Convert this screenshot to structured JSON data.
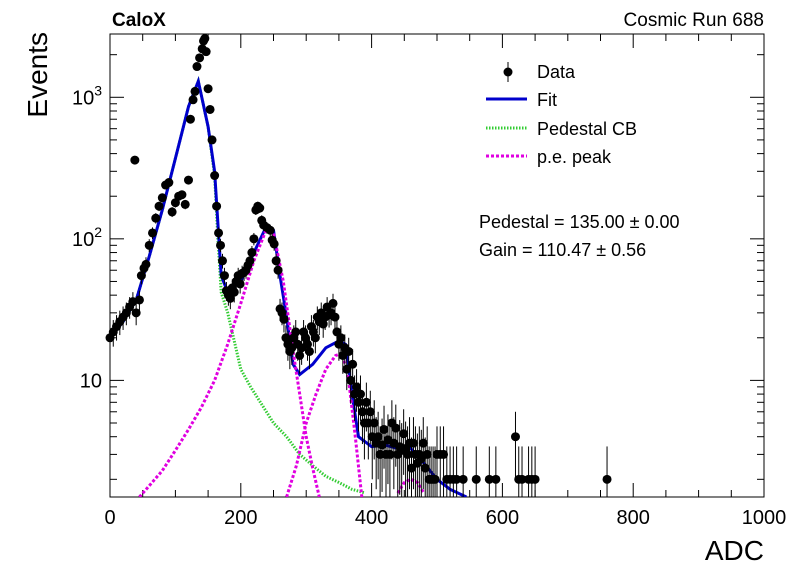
{
  "header": {
    "experiment": "CaloX",
    "run": "Cosmic Run 688"
  },
  "chart_data": {
    "type": "scatter",
    "xlabel": "ADC",
    "ylabel": "Events",
    "xlim": [
      0,
      1000
    ],
    "ylim": [
      1.5,
      2800
    ],
    "yscale": "log",
    "x_ticks": [
      0,
      200,
      400,
      600,
      800,
      1000
    ],
    "y_ticks": [
      10,
      100,
      1000
    ],
    "y_tick_labels": [
      "10",
      "10^2",
      "10^3"
    ],
    "legend": {
      "placement": "top-right",
      "entries": [
        "Data",
        "Fit",
        "Pedestal CB",
        "p.e. peak"
      ]
    },
    "annotations": {
      "pedestal": "Pedestal = 135.00 ± 0.00",
      "gain": "Gain = 110.47 ± 0.56"
    },
    "colors": {
      "data": "#000000",
      "fit": "#0000cc",
      "pedestal": "#33cc33",
      "pe": "#e000e0"
    },
    "data": [
      [
        0,
        20
      ],
      [
        5,
        22
      ],
      [
        10,
        24
      ],
      [
        15,
        26
      ],
      [
        20,
        28
      ],
      [
        25,
        30
      ],
      [
        30,
        33
      ],
      [
        35,
        36
      ],
      [
        38,
        360
      ],
      [
        40,
        30
      ],
      [
        45,
        37
      ],
      [
        48,
        55
      ],
      [
        52,
        62
      ],
      [
        55,
        66
      ],
      [
        60,
        90
      ],
      [
        65,
        110
      ],
      [
        70,
        140
      ],
      [
        75,
        170
      ],
      [
        80,
        195
      ],
      [
        85,
        240
      ],
      [
        90,
        250
      ],
      [
        95,
        155
      ],
      [
        100,
        180
      ],
      [
        105,
        200
      ],
      [
        110,
        205
      ],
      [
        115,
        175
      ],
      [
        120,
        260
      ],
      [
        123,
        700
      ],
      [
        127,
        960
      ],
      [
        130,
        1100
      ],
      [
        133,
        1650
      ],
      [
        137,
        1900
      ],
      [
        141,
        2200
      ],
      [
        143,
        2500
      ],
      [
        145,
        2600
      ],
      [
        147,
        2100
      ],
      [
        150,
        1150
      ],
      [
        153,
        820
      ],
      [
        156,
        500
      ],
      [
        160,
        280
      ],
      [
        163,
        170
      ],
      [
        166,
        110
      ],
      [
        169,
        90
      ],
      [
        172,
        70
      ],
      [
        175,
        55
      ],
      [
        178,
        43
      ],
      [
        181,
        40
      ],
      [
        184,
        38
      ],
      [
        187,
        45
      ],
      [
        190,
        42
      ],
      [
        193,
        50
      ],
      [
        196,
        55
      ],
      [
        199,
        48
      ],
      [
        202,
        57
      ],
      [
        205,
        58
      ],
      [
        208,
        60
      ],
      [
        211,
        65
      ],
      [
        214,
        70
      ],
      [
        217,
        80
      ],
      [
        220,
        100
      ],
      [
        223,
        160
      ],
      [
        226,
        170
      ],
      [
        229,
        165
      ],
      [
        232,
        135
      ],
      [
        235,
        125
      ],
      [
        240,
        120
      ],
      [
        245,
        115
      ],
      [
        248,
        98
      ],
      [
        251,
        92
      ],
      [
        254,
        70
      ],
      [
        257,
        60
      ],
      [
        260,
        32
      ],
      [
        263,
        30
      ],
      [
        266,
        27
      ],
      [
        269,
        20
      ],
      [
        272,
        18
      ],
      [
        275,
        16
      ],
      [
        278,
        17
      ],
      [
        281,
        20
      ],
      [
        284,
        22
      ],
      [
        287,
        18
      ],
      [
        290,
        15
      ],
      [
        293,
        17
      ],
      [
        296,
        22
      ],
      [
        299,
        20
      ],
      [
        302,
        18
      ],
      [
        305,
        16
      ],
      [
        308,
        24
      ],
      [
        311,
        22
      ],
      [
        314,
        20
      ],
      [
        317,
        28
      ],
      [
        320,
        26
      ],
      [
        323,
        30
      ],
      [
        326,
        25
      ],
      [
        329,
        28
      ],
      [
        332,
        33
      ],
      [
        335,
        29
      ],
      [
        338,
        30
      ],
      [
        341,
        35
      ],
      [
        344,
        28
      ],
      [
        347,
        22
      ],
      [
        350,
        18
      ],
      [
        353,
        20
      ],
      [
        356,
        15
      ],
      [
        359,
        17
      ],
      [
        362,
        12
      ],
      [
        365,
        16
      ],
      [
        368,
        10
      ],
      [
        371,
        13
      ],
      [
        374,
        8
      ],
      [
        377,
        9
      ],
      [
        380,
        7
      ],
      [
        383,
        8
      ],
      [
        386,
        6
      ],
      [
        389,
        5
      ],
      [
        392,
        7
      ],
      [
        395,
        5
      ],
      [
        398,
        6
      ],
      [
        401,
        4
      ],
      [
        404,
        5
      ],
      [
        407,
        3.6
      ],
      [
        410,
        4
      ],
      [
        413,
        3
      ],
      [
        416,
        3.5
      ],
      [
        419,
        4.5
      ],
      [
        422,
        3
      ],
      [
        425,
        3.8
      ],
      [
        428,
        3
      ],
      [
        431,
        5
      ],
      [
        434,
        3.6
      ],
      [
        437,
        4.6
      ],
      [
        440,
        3
      ],
      [
        443,
        3.4
      ],
      [
        446,
        3.2
      ],
      [
        449,
        4.2
      ],
      [
        452,
        3.3
      ],
      [
        455,
        3
      ],
      [
        458,
        3.6
      ],
      [
        461,
        2.4
      ],
      [
        464,
        3.6
      ],
      [
        467,
        3
      ],
      [
        470,
        2.6
      ],
      [
        473,
        3
      ],
      [
        476,
        2.8
      ],
      [
        479,
        3.6
      ],
      [
        482,
        2.4
      ],
      [
        485,
        3
      ],
      [
        488,
        2
      ],
      [
        491,
        2
      ],
      [
        494,
        2
      ],
      [
        497,
        2
      ],
      [
        500,
        3
      ],
      [
        505,
        3
      ],
      [
        510,
        3
      ],
      [
        515,
        2
      ],
      [
        520,
        2
      ],
      [
        525,
        2
      ],
      [
        530,
        2
      ],
      [
        540,
        2
      ],
      [
        560,
        2
      ],
      [
        580,
        2
      ],
      [
        590,
        2
      ],
      [
        620,
        4
      ],
      [
        625,
        2
      ],
      [
        630,
        2
      ],
      [
        640,
        2
      ],
      [
        645,
        2
      ],
      [
        650,
        2
      ],
      [
        760,
        2
      ]
    ],
    "fit": [
      [
        0,
        20
      ],
      [
        20,
        26
      ],
      [
        40,
        37
      ],
      [
        60,
        75
      ],
      [
        80,
        160
      ],
      [
        100,
        370
      ],
      [
        120,
        860
      ],
      [
        135,
        1300
      ],
      [
        150,
        620
      ],
      [
        160,
        300
      ],
      [
        170,
        55
      ],
      [
        180,
        42
      ],
      [
        200,
        50
      ],
      [
        220,
        80
      ],
      [
        240,
        125
      ],
      [
        250,
        115
      ],
      [
        260,
        55
      ],
      [
        270,
        28
      ],
      [
        280,
        13
      ],
      [
        290,
        11
      ],
      [
        310,
        13
      ],
      [
        330,
        17
      ],
      [
        350,
        19
      ],
      [
        360,
        18
      ],
      [
        370,
        8
      ],
      [
        380,
        4
      ],
      [
        400,
        3.4
      ],
      [
        420,
        3.5
      ],
      [
        440,
        3.3
      ],
      [
        460,
        3.3
      ],
      [
        480,
        2.6
      ],
      [
        500,
        2
      ],
      [
        520,
        1.7
      ],
      [
        545,
        1.5
      ]
    ],
    "pedestal_cb": [
      [
        0,
        20
      ],
      [
        20,
        26
      ],
      [
        40,
        37
      ],
      [
        60,
        75
      ],
      [
        80,
        160
      ],
      [
        100,
        370
      ],
      [
        120,
        860
      ],
      [
        135,
        1300
      ],
      [
        150,
        620
      ],
      [
        160,
        280
      ],
      [
        165,
        100
      ],
      [
        170,
        42
      ],
      [
        180,
        30
      ],
      [
        200,
        12
      ],
      [
        215,
        9
      ],
      [
        230,
        7
      ],
      [
        250,
        5
      ],
      [
        270,
        4
      ],
      [
        290,
        3
      ],
      [
        310,
        2.5
      ],
      [
        330,
        2.1
      ],
      [
        350,
        1.9
      ],
      [
        370,
        1.7
      ],
      [
        390,
        1.6
      ]
    ],
    "pe_peak_1": [
      [
        45,
        1.5
      ],
      [
        60,
        1.8
      ],
      [
        80,
        2.3
      ],
      [
        100,
        3.2
      ],
      [
        120,
        4.5
      ],
      [
        140,
        6.5
      ],
      [
        160,
        10
      ],
      [
        180,
        18
      ],
      [
        200,
        35
      ],
      [
        220,
        70
      ],
      [
        240,
        120
      ],
      [
        250,
        110
      ],
      [
        265,
        50
      ],
      [
        280,
        16
      ],
      [
        290,
        8
      ],
      [
        300,
        4
      ],
      [
        310,
        2.4
      ],
      [
        320,
        1.5
      ]
    ],
    "pe_peak_2": [
      [
        270,
        1.5
      ],
      [
        285,
        2.5
      ],
      [
        300,
        5
      ],
      [
        315,
        8
      ],
      [
        330,
        12
      ],
      [
        345,
        15
      ],
      [
        355,
        15.5
      ],
      [
        365,
        10
      ],
      [
        375,
        4
      ],
      [
        385,
        1.5
      ]
    ],
    "pe_peak_3": [
      [
        440,
        1.6
      ],
      [
        450,
        1.9
      ],
      [
        460,
        2
      ],
      [
        470,
        1.9
      ],
      [
        480,
        1.6
      ]
    ]
  }
}
